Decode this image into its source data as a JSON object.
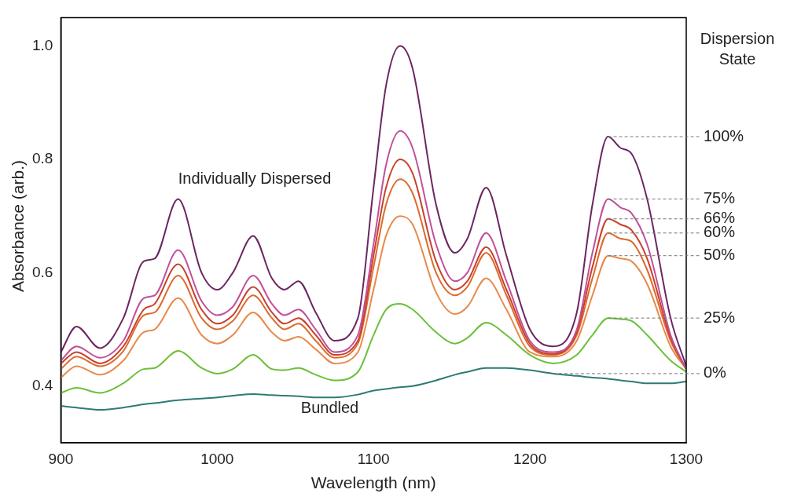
{
  "chart_data": {
    "type": "line",
    "xlabel": "Wavelength (nm)",
    "ylabel": "Absorbance (arb.)",
    "legend_title": "Dispersion State",
    "x": [
      900,
      910,
      925,
      940,
      953,
      960,
      975,
      990,
      1000,
      1010,
      1023,
      1035,
      1043,
      1052,
      1063,
      1075,
      1090,
      1100,
      1108,
      1117,
      1125,
      1140,
      1152,
      1160,
      1172,
      1185,
      1200,
      1215,
      1230,
      1240,
      1250,
      1258,
      1265,
      1275,
      1290,
      1300
    ],
    "xlim": [
      900,
      1300
    ],
    "xticks": [
      900,
      1000,
      1100,
      1200,
      1300
    ],
    "ylim": [
      0.3,
      1.05
    ],
    "yticks": [
      {
        "value": 0.4,
        "label": "0.4"
      },
      {
        "value": 0.6,
        "label": "0.6"
      },
      {
        "value": 0.8,
        "label": "0.8"
      },
      {
        "value": 1,
        "label": "1.0"
      }
    ],
    "grid": false,
    "marker": "none",
    "line_style": "solid",
    "annotations": [
      "Individually Dispersed",
      "Bundled"
    ],
    "series": [
      {
        "name": "100%",
        "color": "#6b2660",
        "values": [
          0.46,
          0.505,
          0.467,
          0.52,
          0.62,
          0.625,
          0.73,
          0.6,
          0.57,
          0.6,
          0.665,
          0.59,
          0.57,
          0.585,
          0.53,
          0.48,
          0.52,
          0.75,
          0.93,
          1.0,
          0.96,
          0.72,
          0.635,
          0.66,
          0.75,
          0.63,
          0.5,
          0.47,
          0.53,
          0.72,
          0.84,
          0.82,
          0.81,
          0.73,
          0.52,
          0.435
        ]
      },
      {
        "name": "75%",
        "color": "#c0509a",
        "values": [
          0.445,
          0.47,
          0.45,
          0.48,
          0.555,
          0.56,
          0.64,
          0.55,
          0.525,
          0.54,
          0.595,
          0.545,
          0.525,
          0.535,
          0.5,
          0.46,
          0.49,
          0.65,
          0.79,
          0.85,
          0.82,
          0.65,
          0.585,
          0.6,
          0.67,
          0.585,
          0.48,
          0.46,
          0.5,
          0.635,
          0.73,
          0.715,
          0.705,
          0.65,
          0.49,
          0.43
        ]
      },
      {
        "name": "66%",
        "color": "#c8412c",
        "values": [
          0.44,
          0.46,
          0.44,
          0.47,
          0.535,
          0.545,
          0.615,
          0.535,
          0.51,
          0.525,
          0.575,
          0.53,
          0.51,
          0.52,
          0.49,
          0.455,
          0.48,
          0.63,
          0.75,
          0.8,
          0.775,
          0.62,
          0.57,
          0.585,
          0.645,
          0.57,
          0.475,
          0.457,
          0.495,
          0.61,
          0.695,
          0.685,
          0.675,
          0.625,
          0.485,
          0.43
        ]
      },
      {
        "name": "60%",
        "color": "#dd6a2c",
        "values": [
          0.43,
          0.452,
          0.435,
          0.462,
          0.525,
          0.53,
          0.595,
          0.52,
          0.5,
          0.515,
          0.56,
          0.52,
          0.5,
          0.51,
          0.48,
          0.45,
          0.475,
          0.61,
          0.72,
          0.765,
          0.74,
          0.6,
          0.56,
          0.575,
          0.635,
          0.56,
          0.47,
          0.455,
          0.49,
          0.59,
          0.67,
          0.66,
          0.655,
          0.605,
          0.48,
          0.43
        ]
      },
      {
        "name": "50%",
        "color": "#e8894a",
        "values": [
          0.415,
          0.435,
          0.42,
          0.445,
          0.495,
          0.5,
          0.555,
          0.49,
          0.475,
          0.49,
          0.53,
          0.495,
          0.48,
          0.487,
          0.465,
          0.44,
          0.46,
          0.57,
          0.665,
          0.7,
          0.685,
          0.565,
          0.527,
          0.54,
          0.59,
          0.535,
          0.46,
          0.452,
          0.48,
          0.56,
          0.63,
          0.625,
          0.62,
          0.58,
          0.47,
          0.43
        ]
      },
      {
        "name": "25%",
        "color": "#6cbf3a",
        "values": [
          0.388,
          0.397,
          0.388,
          0.405,
          0.43,
          0.432,
          0.462,
          0.432,
          0.422,
          0.43,
          0.455,
          0.43,
          0.428,
          0.432,
          0.42,
          0.41,
          0.425,
          0.49,
          0.535,
          0.545,
          0.535,
          0.495,
          0.475,
          0.485,
          0.512,
          0.49,
          0.455,
          0.44,
          0.455,
          0.49,
          0.52,
          0.518,
          0.515,
          0.49,
          0.445,
          0.425
        ]
      },
      {
        "name": "0%",
        "color": "#2e7b74",
        "values": [
          0.365,
          0.362,
          0.358,
          0.362,
          0.368,
          0.37,
          0.375,
          0.378,
          0.38,
          0.383,
          0.386,
          0.384,
          0.383,
          0.382,
          0.38,
          0.38,
          0.385,
          0.392,
          0.395,
          0.398,
          0.4,
          0.41,
          0.42,
          0.425,
          0.432,
          0.432,
          0.428,
          0.422,
          0.418,
          0.415,
          0.413,
          0.41,
          0.408,
          0.405,
          0.405,
          0.408
        ]
      }
    ]
  }
}
